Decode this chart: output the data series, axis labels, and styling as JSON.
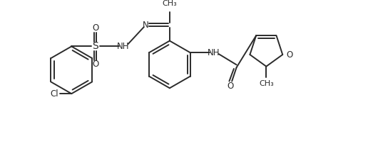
{
  "background_color": "#ffffff",
  "line_color": "#2b2b2b",
  "line_width": 1.4,
  "figsize": [
    5.23,
    2.13
  ],
  "dpi": 100,
  "xlim": [
    0,
    10.46
  ],
  "ylim": [
    0,
    4.26
  ]
}
